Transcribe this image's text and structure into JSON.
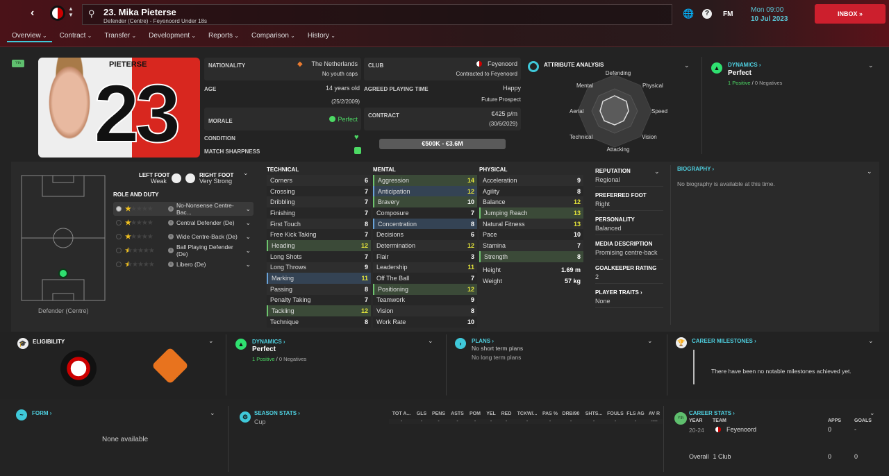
{
  "header": {
    "title": "23. Mika Pieterse",
    "subtitle": "Defender (Centre) - Feyenoord Under 18s",
    "fm": "FM",
    "time": "Mon 09:00",
    "date": "10 Jul 2023",
    "inbox": "INBOX »",
    "accent": "#cc1f2d"
  },
  "tabs": [
    "Overview",
    "Contract",
    "Transfer",
    "Development",
    "Reports",
    "Comparison",
    "History"
  ],
  "player": {
    "badge": "Yth",
    "shirt_name": "PIETERSE",
    "number": "23",
    "nationality_label": "NATIONALITY",
    "nationality": "The Netherlands",
    "caps": "No youth caps",
    "club_label": "CLUB",
    "club": "Feyenoord",
    "club_status": "Contracted to Feyenoord",
    "age_label": "AGE",
    "age": "14 years old",
    "dob": "(25/2/2009)",
    "apt_label": "AGREED PLAYING TIME",
    "apt": "Happy",
    "apt_status": "Future Prospect",
    "morale_label": "MORALE",
    "morale": "Perfect",
    "contract_label": "CONTRACT",
    "wage": "€425 p/m",
    "expiry": "(30/6/2029)",
    "condition_label": "CONDITION",
    "sharpness_label": "MATCH SHARPNESS",
    "value": "€500K - €3.6M"
  },
  "analysis": {
    "title": "ATTRIBUTE ANALYSIS",
    "labels": [
      "Defending",
      "Physical",
      "Speed",
      "Vision",
      "Attacking",
      "Technical",
      "Aerial",
      "Mental"
    ]
  },
  "dynamics": {
    "title": "DYNAMICS ›",
    "value": "Perfect",
    "positive": "1 Positive",
    "sep": "/",
    "negative": "0 Negatives"
  },
  "feet": {
    "left_label": "LEFT FOOT",
    "left": "Weak",
    "right_label": "RIGHT FOOT",
    "right": "Very Strong"
  },
  "roles": {
    "title": "ROLE AND DUTY",
    "items": [
      {
        "name": "No-Nonsense Centre-Bac...",
        "stars": 1
      },
      {
        "name": "Central Defender (De)",
        "stars": 1
      },
      {
        "name": "Wide Centre-Back (De)",
        "stars": 1
      },
      {
        "name": "Ball Playing Defender (De)",
        "stars": 0.5
      },
      {
        "name": "Libero (De)",
        "stars": 0.5
      }
    ]
  },
  "position_label": "Defender (Centre)",
  "attributes": {
    "technical": {
      "title": "TECHNICAL",
      "rows": [
        [
          "Corners",
          6,
          ""
        ],
        [
          "Crossing",
          7,
          ""
        ],
        [
          "Dribbling",
          7,
          ""
        ],
        [
          "Finishing",
          7,
          ""
        ],
        [
          "First Touch",
          8,
          ""
        ],
        [
          "Free Kick Taking",
          7,
          ""
        ],
        [
          "Heading",
          12,
          "g"
        ],
        [
          "Long Shots",
          7,
          ""
        ],
        [
          "Long Throws",
          9,
          ""
        ],
        [
          "Marking",
          11,
          "b"
        ],
        [
          "Passing",
          8,
          ""
        ],
        [
          "Penalty Taking",
          7,
          ""
        ],
        [
          "Tackling",
          12,
          "g"
        ],
        [
          "Technique",
          8,
          ""
        ]
      ]
    },
    "mental": {
      "title": "MENTAL",
      "rows": [
        [
          "Aggression",
          14,
          "g"
        ],
        [
          "Anticipation",
          12,
          "b"
        ],
        [
          "Bravery",
          10,
          "g"
        ],
        [
          "Composure",
          7,
          ""
        ],
        [
          "Concentration",
          8,
          "b"
        ],
        [
          "Decisions",
          6,
          ""
        ],
        [
          "Determination",
          12,
          ""
        ],
        [
          "Flair",
          3,
          ""
        ],
        [
          "Leadership",
          11,
          ""
        ],
        [
          "Off The Ball",
          7,
          ""
        ],
        [
          "Positioning",
          12,
          "g"
        ],
        [
          "Teamwork",
          9,
          ""
        ],
        [
          "Vision",
          8,
          ""
        ],
        [
          "Work Rate",
          10,
          ""
        ]
      ]
    },
    "physical": {
      "title": "PHYSICAL",
      "rows": [
        [
          "Acceleration",
          9,
          ""
        ],
        [
          "Agility",
          8,
          ""
        ],
        [
          "Balance",
          12,
          ""
        ],
        [
          "Jumping Reach",
          13,
          "g"
        ],
        [
          "Natural Fitness",
          13,
          ""
        ],
        [
          "Pace",
          10,
          ""
        ],
        [
          "Stamina",
          7,
          ""
        ],
        [
          "Strength",
          8,
          "g"
        ]
      ]
    },
    "height_label": "Height",
    "height": "1.69 m",
    "weight_label": "Weight",
    "weight": "57 kg"
  },
  "info": [
    {
      "label": "REPUTATION",
      "value": "Regional"
    },
    {
      "label": "PREFERRED FOOT",
      "value": "Right"
    },
    {
      "label": "PERSONALITY",
      "value": "Balanced"
    },
    {
      "label": "MEDIA DESCRIPTION",
      "value": "Promising centre-back"
    },
    {
      "label": "GOALKEEPER RATING",
      "value": "2"
    },
    {
      "label": "PLAYER TRAITS ›",
      "value": "None"
    }
  ],
  "biography": {
    "title": "BIOGRAPHY ›",
    "text": "No biography is available at this time."
  },
  "eligibility": {
    "title": "ELIGIBILITY"
  },
  "plans": {
    "title": "PLANS ›",
    "line1": "No short term plans",
    "line2": "No long term plans"
  },
  "milestones": {
    "title": "CAREER MILESTONES ›",
    "text": "There have been no notable milestones achieved yet."
  },
  "form": {
    "title": "FORM ›",
    "text": "None available"
  },
  "season_stats": {
    "title": "SEASON STATS ›",
    "columns": [
      "TOT A...",
      "GLS",
      "PENS",
      "ASTS",
      "POM",
      "YEL",
      "RED",
      "TCKW/...",
      "PAS %",
      "DRB/90",
      "SHTS...",
      "FOULS",
      "FLS AG",
      "AV R"
    ],
    "row_label": "Cup",
    "values": [
      "-",
      "-",
      "-",
      "-",
      "-",
      "-",
      "-",
      "-",
      "-",
      "-",
      "-",
      "-",
      "-",
      "----"
    ]
  },
  "career_stats": {
    "title": "CAREER STATS ›",
    "badge": "Yth",
    "cols": [
      "YEAR",
      "TEAM",
      "APPS",
      "GOALS"
    ],
    "row": [
      "20-24",
      "Feyenoord",
      "0",
      "-"
    ],
    "overall": [
      "Overall",
      "1 Club",
      "0",
      "0"
    ]
  }
}
